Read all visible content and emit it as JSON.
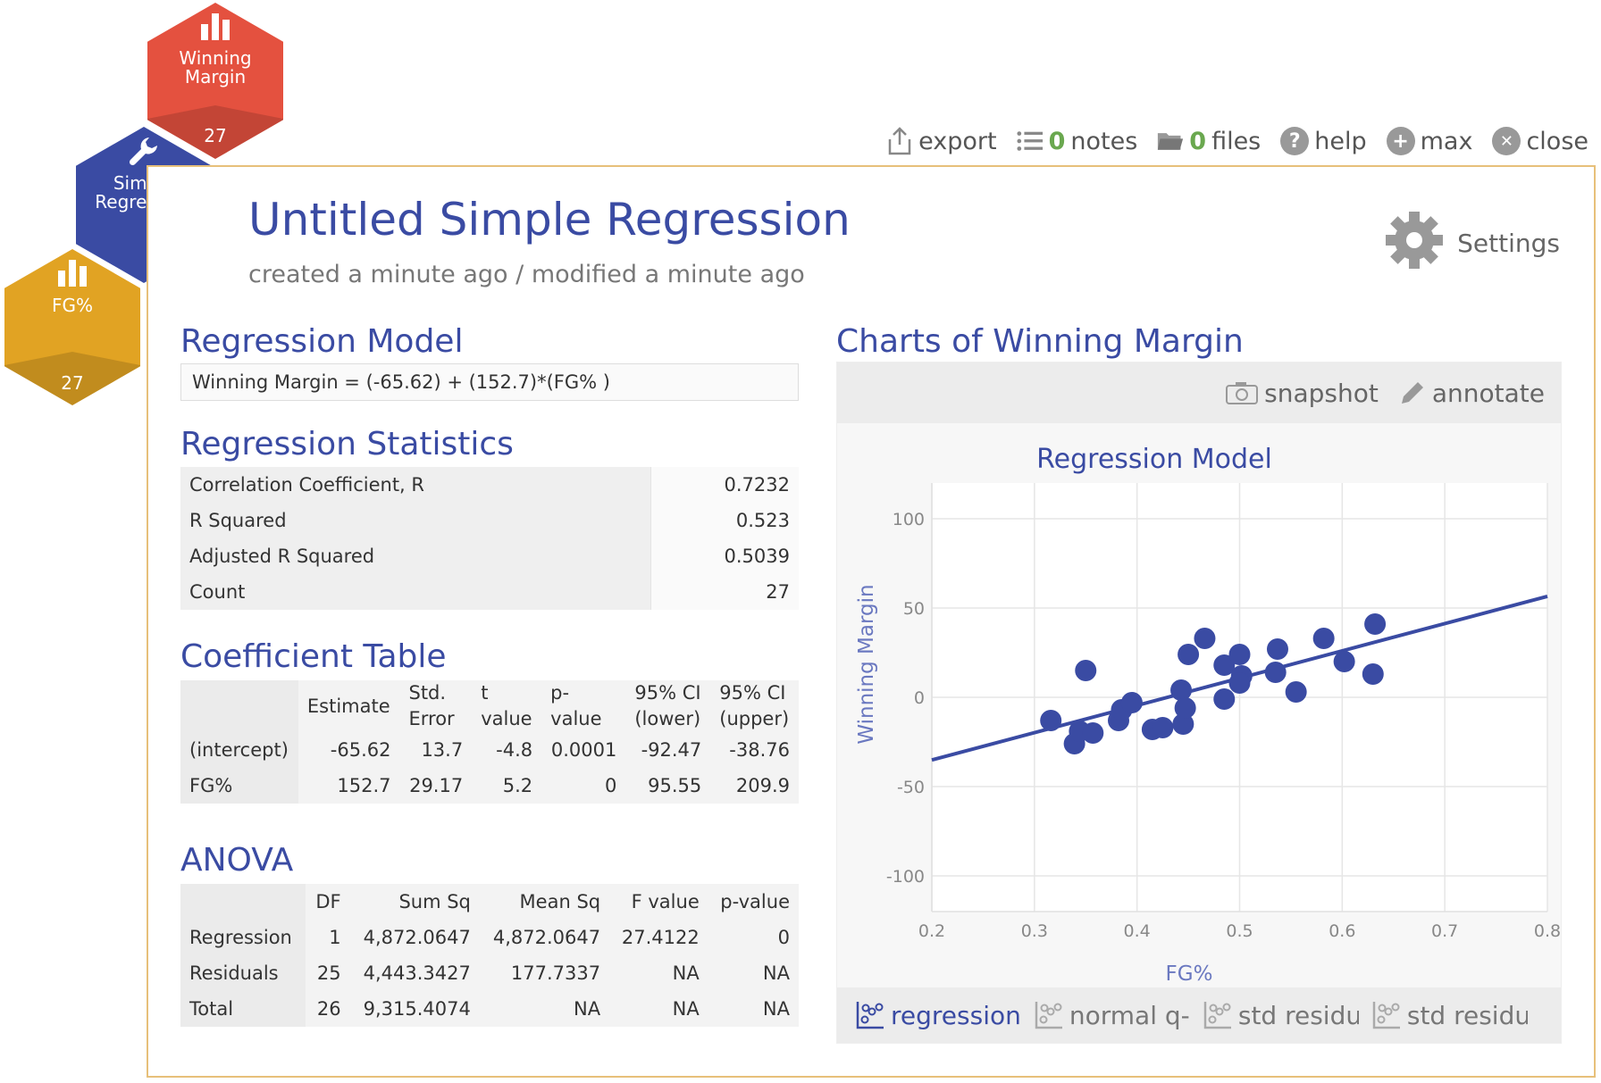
{
  "hexagons": [
    {
      "label_lines": [
        "Winning",
        "Margin"
      ],
      "count": "27",
      "icon": "bar-chart-icon"
    },
    {
      "label_lines": [
        "Simple",
        "Regression"
      ],
      "icon": "wrench-icon"
    },
    {
      "label_lines": [
        "FG%"
      ],
      "count": "27",
      "icon": "bar-chart-icon"
    }
  ],
  "toolbar": {
    "export": "export",
    "notes_count": "0",
    "notes": "notes",
    "files_count": "0",
    "files": "files",
    "help": "help",
    "max": "max",
    "close": "close"
  },
  "header": {
    "title": "Untitled Simple Regression",
    "subtitle": "created a minute ago / modified a minute ago",
    "settings": "Settings"
  },
  "regression_model": {
    "heading": "Regression Model",
    "equation": "Winning Margin = (-65.62) + (152.7)*(FG% )"
  },
  "regression_statistics": {
    "heading": "Regression Statistics",
    "rows": [
      {
        "label": "Correlation Coefficient, R",
        "value": "0.7232"
      },
      {
        "label": "R Squared",
        "value": "0.523"
      },
      {
        "label": "Adjusted R Squared",
        "value": "0.5039"
      },
      {
        "label": "Count",
        "value": "27"
      }
    ]
  },
  "coefficient_table": {
    "heading": "Coefficient Table",
    "headers": [
      [
        "",
        ""
      ],
      [
        "Estimate",
        ""
      ],
      [
        "Std.",
        "Error"
      ],
      [
        "t",
        "value"
      ],
      [
        "p-",
        "value"
      ],
      [
        "95% CI",
        "(lower)"
      ],
      [
        "95% CI",
        "(upper)"
      ]
    ],
    "rows": [
      [
        "(intercept)",
        "-65.62",
        "13.7",
        "-4.8",
        "0.0001",
        "-92.47",
        "-38.76"
      ],
      [
        "FG%",
        "152.7",
        "29.17",
        "5.2",
        "0",
        "95.55",
        "209.9"
      ]
    ]
  },
  "anova": {
    "heading": "ANOVA",
    "headers": [
      "",
      "DF",
      "Sum Sq",
      "Mean Sq",
      "F value",
      "p-value"
    ],
    "rows": [
      [
        "Regression",
        "1",
        "4,872.0647",
        "4,872.0647",
        "27.4122",
        "0"
      ],
      [
        "Residuals",
        "25",
        "4,443.3427",
        "177.7337",
        "NA",
        "NA"
      ],
      [
        "Total",
        "26",
        "9,315.4074",
        "NA",
        "NA",
        "NA"
      ]
    ]
  },
  "charts": {
    "heading": "Charts of Winning Margin",
    "snapshot": "snapshot",
    "annotate": "annotate",
    "tabs": [
      "regression",
      "normal q-q",
      "std residua",
      "std residua"
    ]
  },
  "chart_data": {
    "type": "scatter",
    "title": "Regression Model",
    "xlabel": "FG%",
    "ylabel": "Winning Margin",
    "xlim": [
      0.2,
      0.8
    ],
    "ylim": [
      -120,
      120
    ],
    "xticks": [
      "0.2",
      "0.3",
      "0.4",
      "0.5",
      "0.6",
      "0.7",
      "0.8"
    ],
    "yticks": [
      {
        "value": 100,
        "label": "100"
      },
      {
        "value": 50,
        "label": "50"
      },
      {
        "value": 0,
        "label": "0"
      },
      {
        "value": -50,
        "label": "-50"
      },
      {
        "value": -100,
        "label": "-100"
      }
    ],
    "grid": true,
    "point_color": "#3a4ba3",
    "line": {
      "intercept": -65.62,
      "slope": 152.7
    },
    "points": [
      {
        "x": 0.316,
        "y": -13
      },
      {
        "x": 0.339,
        "y": -26
      },
      {
        "x": 0.344,
        "y": -19
      },
      {
        "x": 0.35,
        "y": 15
      },
      {
        "x": 0.357,
        "y": -20
      },
      {
        "x": 0.382,
        "y": -13
      },
      {
        "x": 0.385,
        "y": -7
      },
      {
        "x": 0.395,
        "y": -3
      },
      {
        "x": 0.415,
        "y": -18
      },
      {
        "x": 0.425,
        "y": -17
      },
      {
        "x": 0.443,
        "y": 4
      },
      {
        "x": 0.445,
        "y": -15
      },
      {
        "x": 0.447,
        "y": -6
      },
      {
        "x": 0.45,
        "y": 24
      },
      {
        "x": 0.466,
        "y": 33
      },
      {
        "x": 0.485,
        "y": -1
      },
      {
        "x": 0.485,
        "y": 18
      },
      {
        "x": 0.5,
        "y": 24
      },
      {
        "x": 0.502,
        "y": 12
      },
      {
        "x": 0.5,
        "y": 8
      },
      {
        "x": 0.535,
        "y": 14
      },
      {
        "x": 0.537,
        "y": 27
      },
      {
        "x": 0.555,
        "y": 3
      },
      {
        "x": 0.582,
        "y": 33
      },
      {
        "x": 0.602,
        "y": 20
      },
      {
        "x": 0.63,
        "y": 13
      },
      {
        "x": 0.632,
        "y": 41
      }
    ]
  }
}
